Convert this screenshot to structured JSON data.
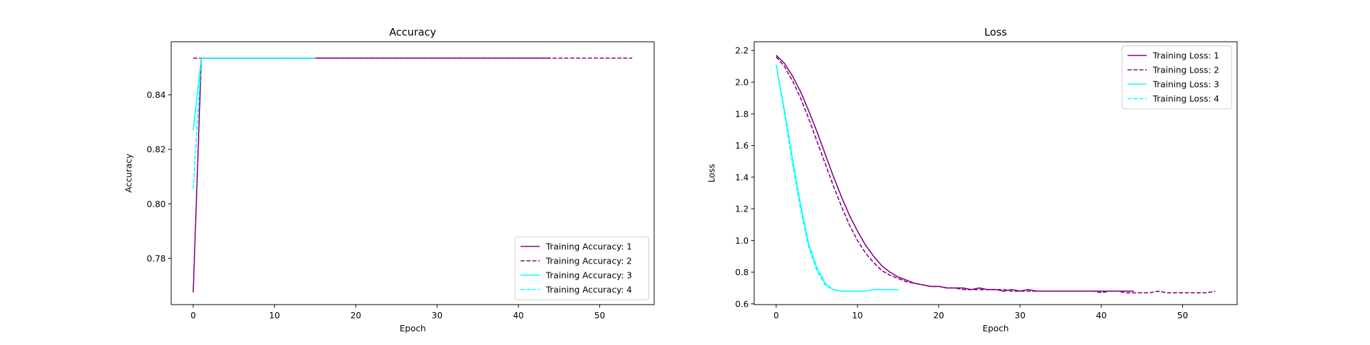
{
  "chart_data": [
    {
      "type": "line",
      "title": "Accuracy",
      "xlabel": "Epoch",
      "ylabel": "Accuracy",
      "xlim": [
        -2.7,
        56.7
      ],
      "ylim": [
        0.763,
        0.8595
      ],
      "xticks": [
        0,
        10,
        20,
        30,
        40,
        50
      ],
      "yticks": [
        0.78,
        0.8,
        0.82,
        0.84
      ],
      "ytick_labels": [
        "0.78",
        "0.80",
        "0.82",
        "0.84"
      ],
      "legend_position": "lower-right",
      "grid": false,
      "series": [
        {
          "name": "Training Accuracy: 1",
          "color": "#800080",
          "dash": "solid",
          "x": [
            0,
            1,
            44
          ],
          "y": [
            0.7675,
            0.8535,
            0.8535
          ]
        },
        {
          "name": "Training Accuracy: 2",
          "color": "#800080",
          "dash": "dashed",
          "x": [
            0,
            1,
            54
          ],
          "y": [
            0.8535,
            0.8535,
            0.8535
          ]
        },
        {
          "name": "Training Accuracy: 3",
          "color": "#00ffff",
          "dash": "solid",
          "x": [
            0,
            1,
            15
          ],
          "y": [
            0.827,
            0.8535,
            0.8535
          ]
        },
        {
          "name": "Training Accuracy: 4",
          "color": "#00ffff",
          "dash": "dashed",
          "x": [
            0,
            1,
            15
          ],
          "y": [
            0.8055,
            0.8535,
            0.8535
          ]
        }
      ]
    },
    {
      "type": "line",
      "title": "Loss",
      "xlabel": "Epoch",
      "ylabel": "Loss",
      "xlim": [
        -2.7,
        56.7
      ],
      "ylim": [
        0.595,
        2.255
      ],
      "xticks": [
        0,
        10,
        20,
        30,
        40,
        50
      ],
      "yticks": [
        0.6,
        0.8,
        1.0,
        1.2,
        1.4,
        1.6,
        1.8,
        2.0,
        2.2
      ],
      "ytick_labels": [
        "0.6",
        "0.8",
        "1.0",
        "1.2",
        "1.4",
        "1.6",
        "1.8",
        "2.0",
        "2.2"
      ],
      "legend_position": "upper-right",
      "grid": false,
      "series": [
        {
          "name": "Training Loss: 1",
          "color": "#800080",
          "dash": "solid",
          "x": [
            0,
            1,
            2,
            3,
            4,
            5,
            6,
            7,
            8,
            9,
            10,
            11,
            12,
            13,
            14,
            15,
            16,
            17,
            18,
            19,
            20,
            21,
            22,
            23,
            24,
            25,
            26,
            27,
            28,
            29,
            30,
            31,
            32,
            33,
            34,
            35,
            36,
            37,
            38,
            39,
            40,
            41,
            42,
            43,
            44
          ],
          "y": [
            2.17,
            2.12,
            2.04,
            1.94,
            1.82,
            1.69,
            1.55,
            1.41,
            1.28,
            1.16,
            1.06,
            0.97,
            0.9,
            0.84,
            0.8,
            0.77,
            0.75,
            0.73,
            0.72,
            0.71,
            0.71,
            0.7,
            0.7,
            0.7,
            0.69,
            0.7,
            0.69,
            0.69,
            0.68,
            0.69,
            0.68,
            0.69,
            0.68,
            0.68,
            0.68,
            0.68,
            0.68,
            0.68,
            0.68,
            0.68,
            0.68,
            0.68,
            0.68,
            0.68,
            0.68
          ]
        },
        {
          "name": "Training Loss: 2",
          "color": "#800080",
          "dash": "dashed",
          "x": [
            0,
            1,
            2,
            3,
            4,
            5,
            6,
            7,
            8,
            9,
            10,
            11,
            12,
            13,
            14,
            15,
            16,
            17,
            18,
            19,
            20,
            21,
            22,
            23,
            24,
            25,
            26,
            27,
            28,
            29,
            30,
            31,
            32,
            33,
            34,
            35,
            36,
            37,
            38,
            39,
            40,
            41,
            42,
            43,
            44,
            45,
            46,
            47,
            48,
            49,
            50,
            51,
            52,
            53,
            54
          ],
          "y": [
            2.16,
            2.1,
            2.01,
            1.9,
            1.77,
            1.63,
            1.49,
            1.35,
            1.22,
            1.1,
            1.0,
            0.92,
            0.86,
            0.81,
            0.78,
            0.76,
            0.74,
            0.73,
            0.72,
            0.71,
            0.71,
            0.7,
            0.7,
            0.69,
            0.69,
            0.69,
            0.69,
            0.69,
            0.69,
            0.68,
            0.68,
            0.68,
            0.68,
            0.68,
            0.68,
            0.68,
            0.68,
            0.68,
            0.68,
            0.68,
            0.67,
            0.68,
            0.68,
            0.67,
            0.67,
            0.67,
            0.67,
            0.68,
            0.67,
            0.67,
            0.67,
            0.67,
            0.67,
            0.67,
            0.68
          ]
        },
        {
          "name": "Training Loss: 3",
          "color": "#00ffff",
          "dash": "solid",
          "x": [
            0,
            1,
            2,
            3,
            4,
            5,
            6,
            7,
            8,
            9,
            10,
            11,
            12,
            13,
            14,
            15
          ],
          "y": [
            2.11,
            1.83,
            1.52,
            1.23,
            0.98,
            0.83,
            0.73,
            0.69,
            0.68,
            0.68,
            0.68,
            0.68,
            0.69,
            0.69,
            0.69,
            0.69
          ]
        },
        {
          "name": "Training Loss: 4",
          "color": "#00ffff",
          "dash": "dashed",
          "x": [
            0,
            1,
            2,
            3,
            4,
            5,
            6,
            7,
            8,
            9,
            10
          ],
          "y": [
            2.11,
            1.81,
            1.49,
            1.2,
            0.96,
            0.81,
            0.72,
            0.69,
            0.68,
            0.68,
            0.68
          ]
        }
      ]
    }
  ]
}
